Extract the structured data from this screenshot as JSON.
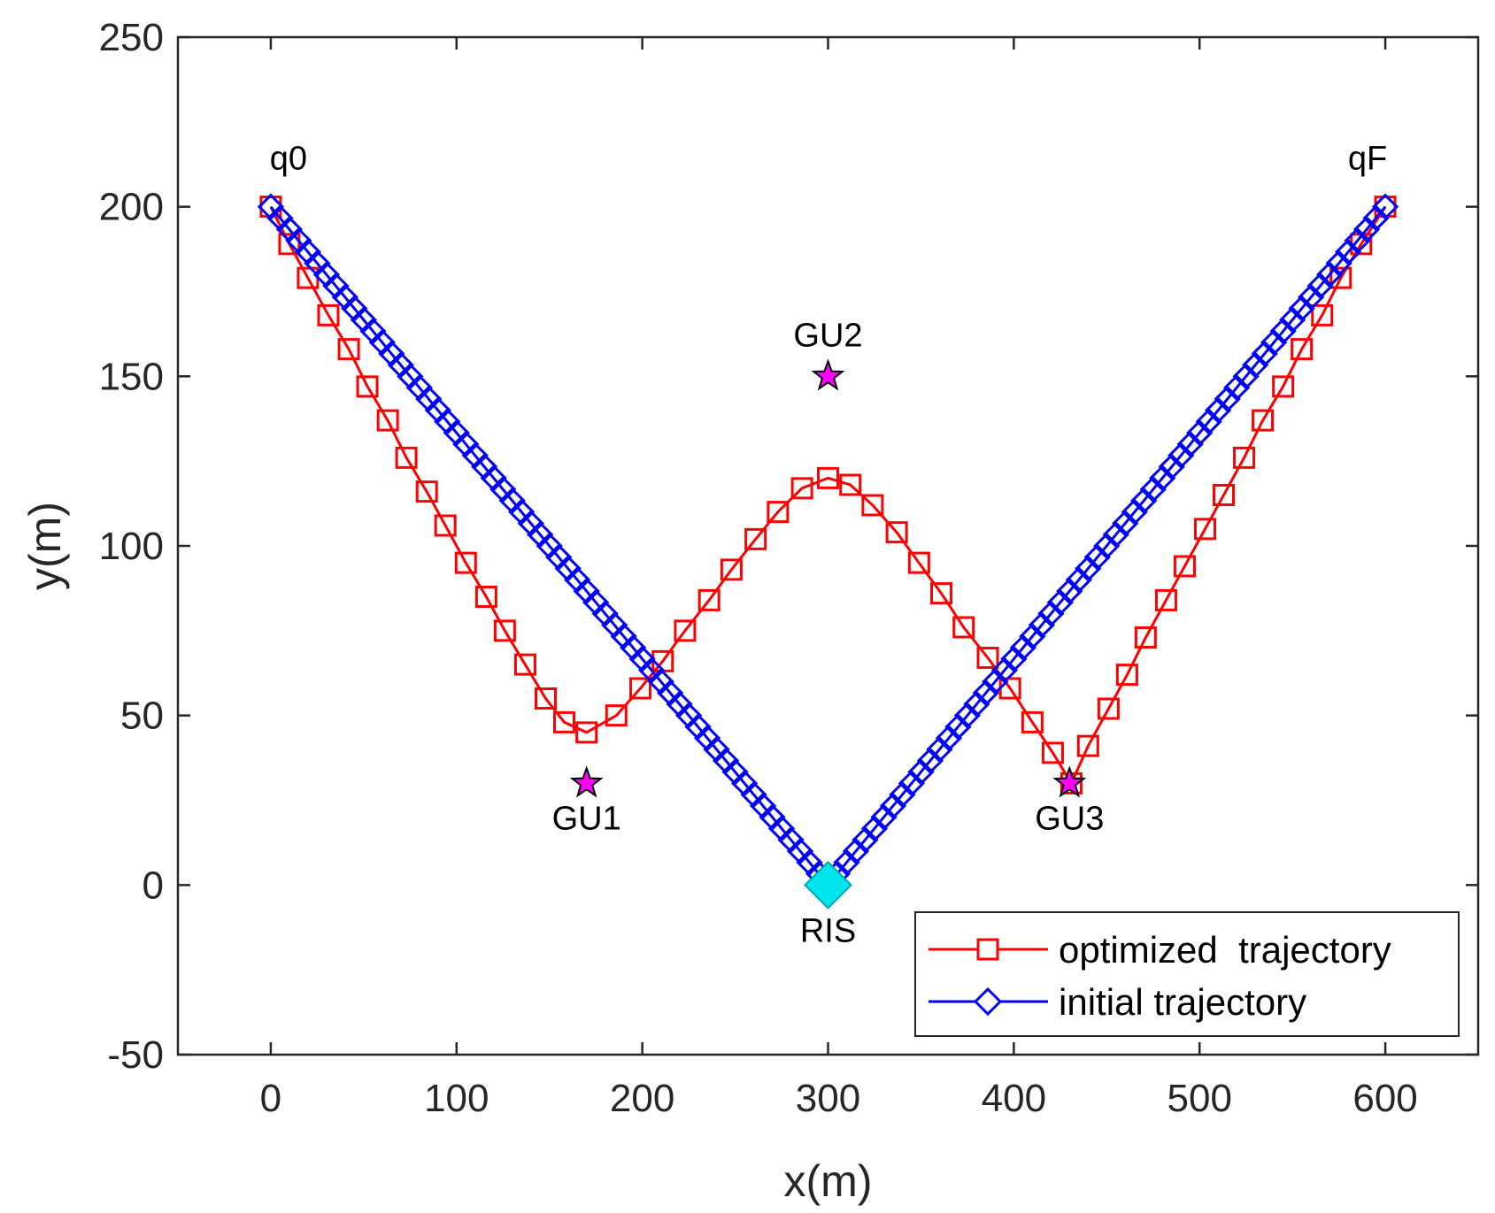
{
  "chart_data": {
    "type": "line",
    "xlabel": "x(m)",
    "ylabel": "y(m)",
    "xlim": [
      -50,
      650
    ],
    "ylim": [
      -50,
      250
    ],
    "xticks": [
      0,
      100,
      200,
      300,
      400,
      500,
      600
    ],
    "yticks": [
      250,
      200,
      150,
      100,
      50,
      0,
      -50
    ],
    "xtick_labels": [
      "0",
      "100",
      "200",
      "300",
      "400",
      "500",
      "600"
    ],
    "ytick_labels": [
      "250",
      "200",
      "150",
      "100",
      "50",
      "0",
      "-50"
    ],
    "grid": false,
    "legend_position": "bottom-right",
    "series": [
      {
        "name": "optimized  trajectory",
        "color": "#ff0000",
        "marker": "square",
        "x": [
          0,
          10,
          20,
          31,
          42,
          52,
          63,
          73,
          84,
          94,
          105,
          116,
          126,
          137,
          148,
          158,
          170,
          186,
          199,
          211,
          223,
          236,
          248,
          261,
          273,
          286,
          300,
          312,
          324,
          337,
          349,
          361,
          373,
          386,
          398,
          410,
          421,
          431,
          440,
          451,
          461,
          471,
          482,
          492,
          503,
          513,
          524,
          534,
          545,
          555,
          566,
          576,
          587,
          600
        ],
        "values": [
          200,
          189,
          179,
          168,
          158,
          147,
          137,
          126,
          116,
          106,
          95,
          85,
          75,
          65,
          55,
          48,
          45,
          50,
          58,
          66,
          75,
          84,
          93,
          102,
          110,
          117,
          120,
          118,
          112,
          104,
          95,
          86,
          76,
          67,
          58,
          48,
          39,
          30,
          41,
          52,
          62,
          73,
          84,
          94,
          105,
          115,
          126,
          137,
          147,
          158,
          168,
          179,
          189,
          200
        ],
        "legend_label": "optimized  trajectory"
      },
      {
        "name": "initial trajectory",
        "color": "#0000ff",
        "marker": "diamond",
        "x": [
          0,
          300,
          600
        ],
        "values": [
          200,
          0,
          200
        ],
        "marker_count": 121,
        "legend_label": "initial trajectory"
      }
    ],
    "points": [
      {
        "name": "GU1",
        "x": 170,
        "y": 30,
        "marker": "star",
        "color": "#ff00ff",
        "label": "GU1"
      },
      {
        "name": "GU2",
        "x": 300,
        "y": 150,
        "marker": "star",
        "color": "#ff00ff",
        "label": "GU2"
      },
      {
        "name": "GU3",
        "x": 430,
        "y": 30,
        "marker": "star",
        "color": "#ff00ff",
        "label": "GU3"
      },
      {
        "name": "RIS",
        "x": 300,
        "y": 0,
        "marker": "diamond",
        "color": "#00e5ee",
        "label": "RIS"
      }
    ],
    "annotations": [
      {
        "text": "q0",
        "x": 0,
        "y": 200
      },
      {
        "text": "qF",
        "x": 600,
        "y": 200
      }
    ]
  }
}
